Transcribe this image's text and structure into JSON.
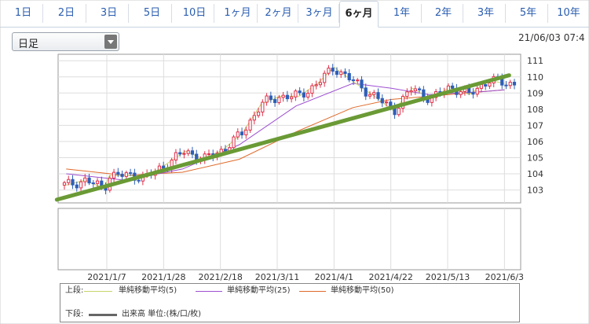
{
  "tabs": [
    "1日",
    "2日",
    "3日",
    "5日",
    "10日",
    "1ヶ月",
    "2ヶ月",
    "3ヶ月",
    "6ヶ月",
    "1年",
    "2年",
    "3年",
    "5年",
    "10年"
  ],
  "active_tab_index": 8,
  "period_select": {
    "value": "日足"
  },
  "timestamp": "21/06/03 07:4",
  "colors": {
    "ma5": "#c9d36b",
    "ma25": "#9d4fd0",
    "ma50": "#e06a2b",
    "up": "#e0304a",
    "down": "#2e5fb8",
    "trendline": "#6a9a35",
    "volume": "#666666"
  },
  "chart_data": {
    "type": "candlestick",
    "y_ticks": [
      "111",
      "110",
      "109",
      "108",
      "107",
      "106",
      "105",
      "104",
      "103"
    ],
    "ylim": [
      102.2,
      111.4
    ],
    "x_tick_labels": [
      "2021/1/7",
      "2021/1/28",
      "2021/2/18",
      "2021/3/11",
      "2021/4/1",
      "2021/4/22",
      "2021/5/13",
      "2021/6/3"
    ],
    "trendline": {
      "from": [
        "2020/12/23",
        102.4
      ],
      "to": [
        "2021/6/3",
        110.1
      ]
    },
    "series": [
      {
        "name": "単純移動平均(5)",
        "color": "#c9d36b"
      },
      {
        "name": "単純移動平均(25)",
        "color": "#9d4fd0"
      },
      {
        "name": "単純移動平均(50)",
        "color": "#e06a2b"
      }
    ],
    "ma25_points": [
      [
        "2020/12/23",
        104.0
      ],
      [
        "2021/1/14",
        103.6
      ],
      [
        "2021/2/4",
        104.3
      ],
      [
        "2021/2/25",
        105.8
      ],
      [
        "2021/3/18",
        108.2
      ],
      [
        "2021/4/8",
        109.6
      ],
      [
        "2021/4/22",
        109.3
      ],
      [
        "2021/5/6",
        108.9
      ],
      [
        "2021/5/27",
        109.1
      ],
      [
        "2021/6/3",
        109.2
      ]
    ],
    "ma50_points": [
      [
        "2020/12/23",
        104.3
      ],
      [
        "2021/1/14",
        103.9
      ],
      [
        "2021/2/4",
        104.1
      ],
      [
        "2021/2/25",
        104.9
      ],
      [
        "2021/3/18",
        106.6
      ],
      [
        "2021/4/8",
        108.1
      ],
      [
        "2021/4/22",
        108.6
      ],
      [
        "2021/5/13",
        108.9
      ],
      [
        "2021/6/3",
        109.2
      ]
    ],
    "close_points": [
      [
        "2020/12/23",
        103.3
      ],
      [
        "2020/12/30",
        103.6
      ],
      [
        "2021/1/6",
        103.1
      ],
      [
        "2021/1/8",
        103.9
      ],
      [
        "2021/1/15",
        103.9
      ],
      [
        "2021/1/22",
        103.8
      ],
      [
        "2021/1/29",
        104.6
      ],
      [
        "2021/2/5",
        105.4
      ],
      [
        "2021/2/12",
        104.9
      ],
      [
        "2021/2/19",
        105.5
      ],
      [
        "2021/2/26",
        106.5
      ],
      [
        "2021/3/5",
        108.3
      ],
      [
        "2021/3/12",
        108.8
      ],
      [
        "2021/3/19",
        108.8
      ],
      [
        "2021/3/26",
        109.6
      ],
      [
        "2021/4/1",
        110.6
      ],
      [
        "2021/4/9",
        109.6
      ],
      [
        "2021/4/16",
        108.8
      ],
      [
        "2021/4/23",
        107.9
      ],
      [
        "2021/4/30",
        109.3
      ],
      [
        "2021/5/7",
        108.6
      ],
      [
        "2021/5/14",
        109.4
      ],
      [
        "2021/5/21",
        108.9
      ],
      [
        "2021/5/28",
        109.8
      ],
      [
        "2021/6/3",
        109.6
      ]
    ]
  },
  "legend": {
    "upper_label": "上段:",
    "lower_label": "下段:",
    "ma5": "単純移動平均(5)",
    "ma25": "単純移動平均(25)",
    "ma50": "単純移動平均(50)",
    "volume": "出来高 単位:(株/口/枚)"
  }
}
